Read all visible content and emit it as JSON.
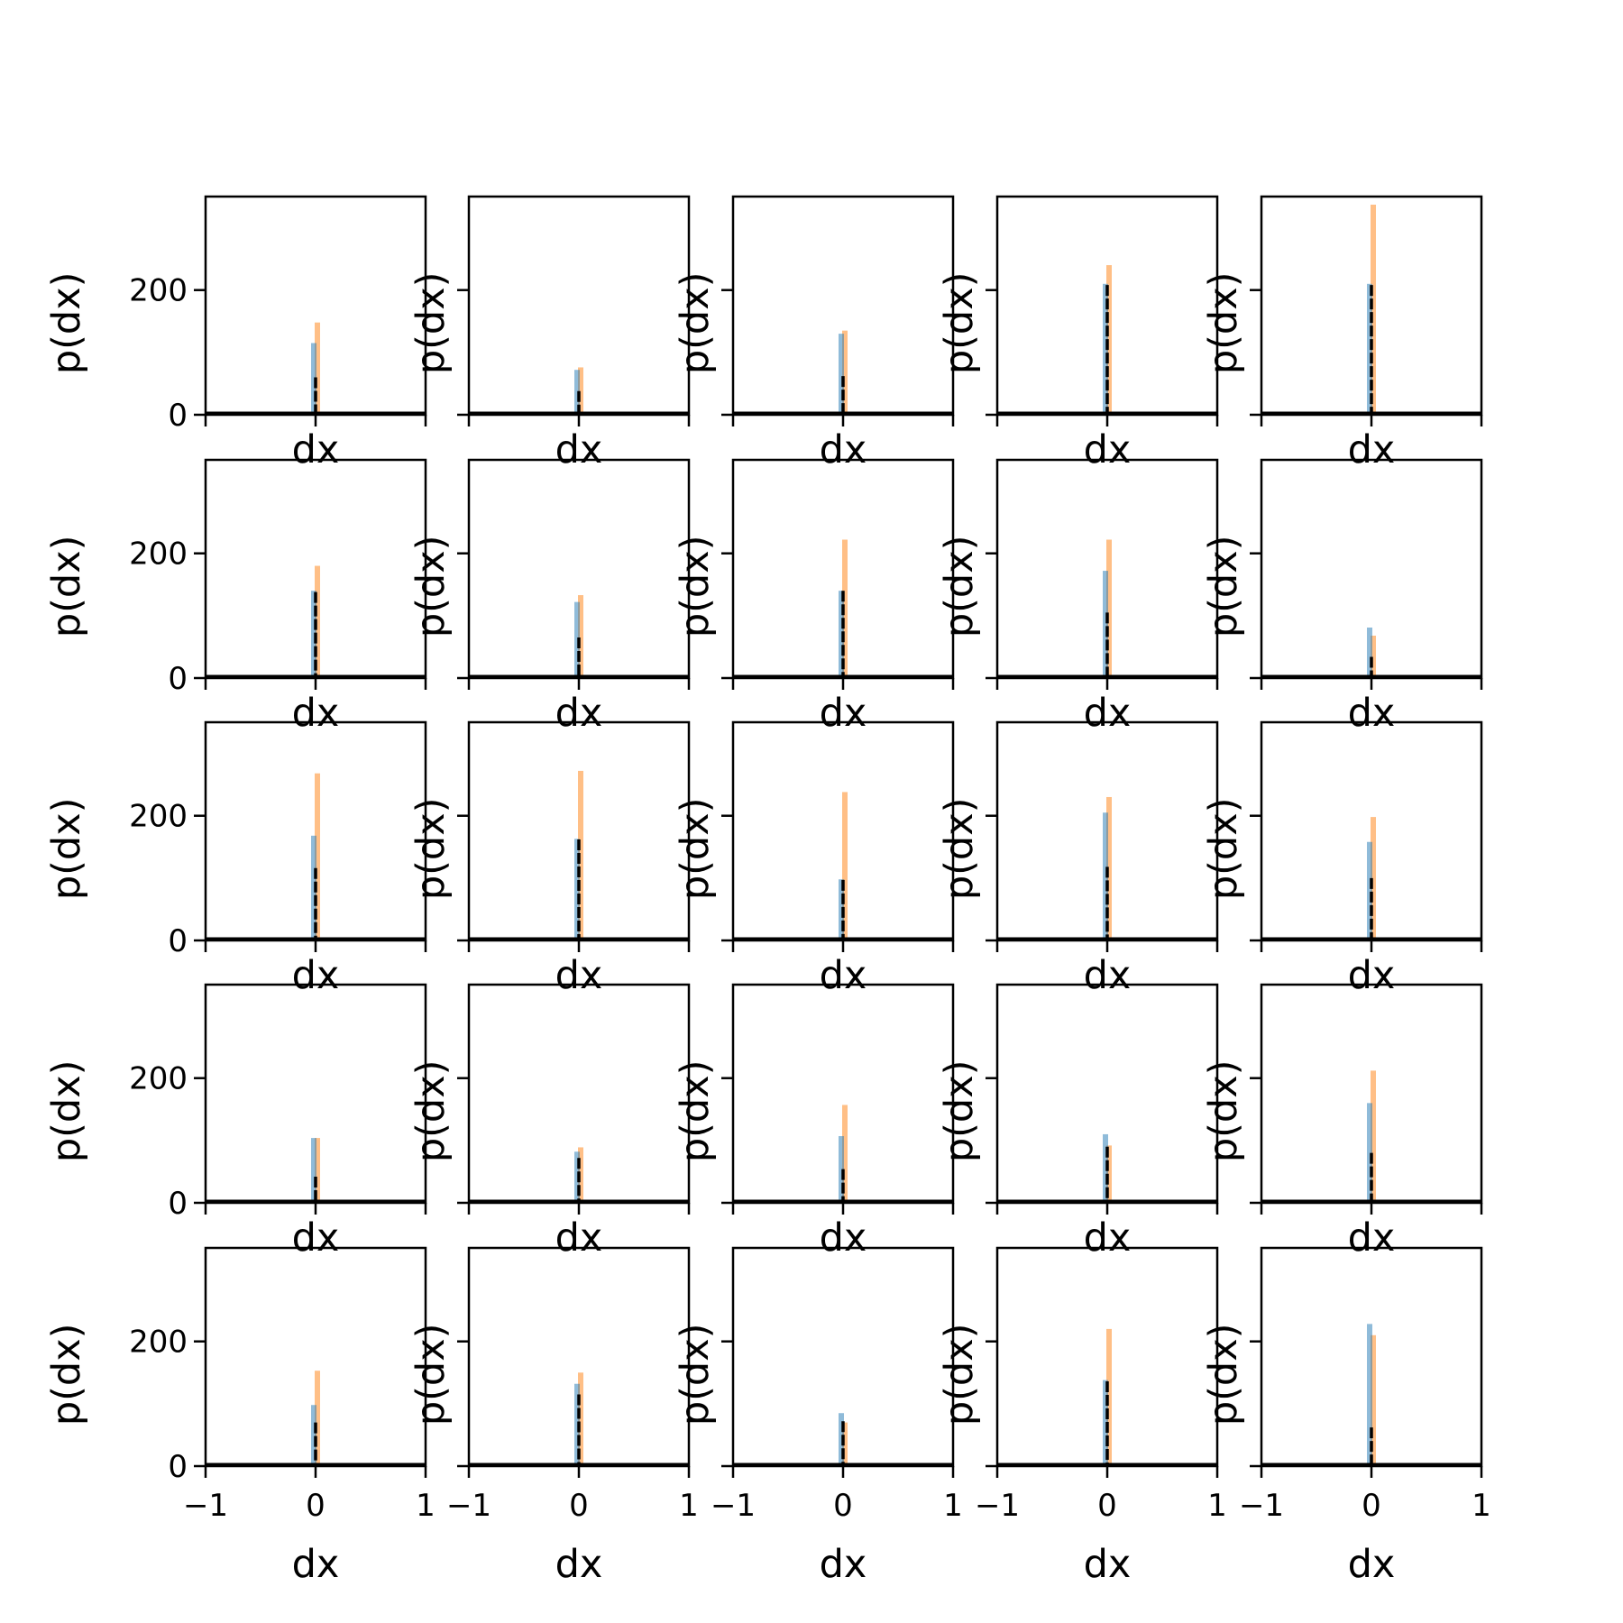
{
  "chart_data": {
    "type": "histogram-grid",
    "rows": 5,
    "cols": 5,
    "xlabel": "dx",
    "ylabel": "p(dx)",
    "xlim": [
      -1,
      1
    ],
    "ylim": [
      0,
      350
    ],
    "xticks": [
      -1,
      0,
      1
    ],
    "yticks": [
      0,
      200
    ],
    "xtick_labels": [
      "−1",
      "0",
      "1"
    ],
    "ytick_labels": [
      "0",
      "200"
    ],
    "grid": false,
    "legend": "none",
    "colors": {
      "series_blue": "#1f77b4",
      "series_orange": "#ff7f0e",
      "density_line": "#000000",
      "axes": "#000000"
    },
    "panels": [
      {
        "row": 0,
        "col": 0,
        "blue_peak": 115,
        "orange_peak": 148,
        "black_peak": 60
      },
      {
        "row": 0,
        "col": 1,
        "blue_peak": 72,
        "orange_peak": 76,
        "black_peak": 38
      },
      {
        "row": 0,
        "col": 2,
        "blue_peak": 130,
        "orange_peak": 135,
        "black_peak": 62
      },
      {
        "row": 0,
        "col": 3,
        "blue_peak": 210,
        "orange_peak": 240,
        "black_peak": 208
      },
      {
        "row": 0,
        "col": 4,
        "blue_peak": 210,
        "orange_peak": 337,
        "black_peak": 208
      },
      {
        "row": 1,
        "col": 0,
        "blue_peak": 140,
        "orange_peak": 180,
        "black_peak": 138
      },
      {
        "row": 1,
        "col": 1,
        "blue_peak": 122,
        "orange_peak": 133,
        "black_peak": 65
      },
      {
        "row": 1,
        "col": 2,
        "blue_peak": 140,
        "orange_peak": 222,
        "black_peak": 140
      },
      {
        "row": 1,
        "col": 3,
        "blue_peak": 172,
        "orange_peak": 222,
        "black_peak": 105
      },
      {
        "row": 1,
        "col": 4,
        "blue_peak": 81,
        "orange_peak": 68,
        "black_peak": 34
      },
      {
        "row": 2,
        "col": 0,
        "blue_peak": 168,
        "orange_peak": 268,
        "black_peak": 116
      },
      {
        "row": 2,
        "col": 1,
        "blue_peak": 163,
        "orange_peak": 272,
        "black_peak": 162
      },
      {
        "row": 2,
        "col": 2,
        "blue_peak": 98,
        "orange_peak": 238,
        "black_peak": 97
      },
      {
        "row": 2,
        "col": 3,
        "blue_peak": 205,
        "orange_peak": 230,
        "black_peak": 118
      },
      {
        "row": 2,
        "col": 4,
        "blue_peak": 158,
        "orange_peak": 198,
        "black_peak": 100
      },
      {
        "row": 3,
        "col": 0,
        "blue_peak": 104,
        "orange_peak": 104,
        "black_peak": 42
      },
      {
        "row": 3,
        "col": 1,
        "blue_peak": 82,
        "orange_peak": 89,
        "black_peak": 72
      },
      {
        "row": 3,
        "col": 2,
        "blue_peak": 107,
        "orange_peak": 157,
        "black_peak": 54
      },
      {
        "row": 3,
        "col": 3,
        "blue_peak": 110,
        "orange_peak": 92,
        "black_peak": 90
      },
      {
        "row": 3,
        "col": 4,
        "blue_peak": 160,
        "orange_peak": 212,
        "black_peak": 80
      },
      {
        "row": 4,
        "col": 0,
        "blue_peak": 98,
        "orange_peak": 153,
        "black_peak": 70
      },
      {
        "row": 4,
        "col": 1,
        "blue_peak": 132,
        "orange_peak": 150,
        "black_peak": 115
      },
      {
        "row": 4,
        "col": 2,
        "blue_peak": 85,
        "orange_peak": 70,
        "black_peak": 72
      },
      {
        "row": 4,
        "col": 3,
        "blue_peak": 138,
        "orange_peak": 220,
        "black_peak": 136
      },
      {
        "row": 4,
        "col": 4,
        "blue_peak": 228,
        "orange_peak": 210,
        "black_peak": 62
      }
    ]
  }
}
